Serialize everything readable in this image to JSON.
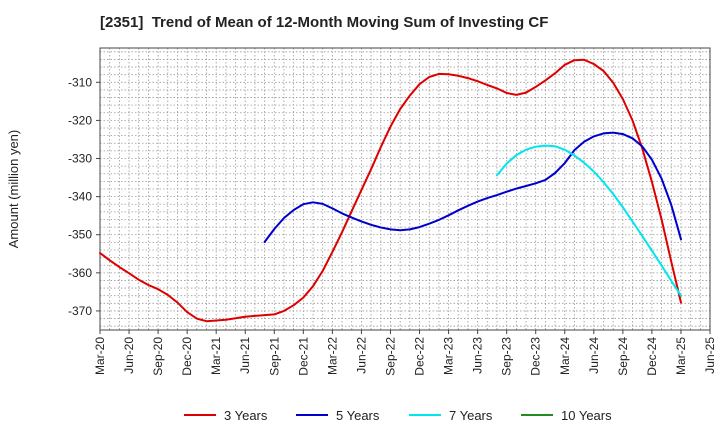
{
  "chart_data": {
    "type": "line",
    "title": "[2351]  Trend of Mean of 12-Month Moving Sum of Investing CF",
    "ylabel": "Amount (million yen)",
    "xlabel": "",
    "ylim": [
      -375,
      -301
    ],
    "yticks": [
      -310,
      -320,
      -330,
      -340,
      -350,
      -360,
      -370
    ],
    "xlim": [
      "2020-03",
      "2025-06"
    ],
    "xticks": [
      "Mar-20",
      "Jun-20",
      "Sep-20",
      "Dec-20",
      "Mar-21",
      "Jun-21",
      "Sep-21",
      "Dec-21",
      "Mar-22",
      "Jun-22",
      "Sep-22",
      "Dec-22",
      "Mar-23",
      "Jun-23",
      "Sep-23",
      "Dec-23",
      "Mar-24",
      "Jun-24",
      "Sep-24",
      "Dec-24",
      "Mar-25",
      "Jun-25"
    ],
    "grid": true,
    "legend_position": "bottom",
    "series": [
      {
        "name": "3 Years",
        "color": "#dd0000",
        "x": [
          "2020-03",
          "2020-04",
          "2020-05",
          "2020-06",
          "2020-07",
          "2020-08",
          "2020-09",
          "2020-10",
          "2020-11",
          "2020-12",
          "2021-01",
          "2021-02",
          "2021-03",
          "2021-04",
          "2021-05",
          "2021-06",
          "2021-07",
          "2021-08",
          "2021-09",
          "2021-10",
          "2021-11",
          "2021-12",
          "2022-01",
          "2022-02",
          "2022-03",
          "2022-04",
          "2022-05",
          "2022-06",
          "2022-07",
          "2022-08",
          "2022-09",
          "2022-10",
          "2022-11",
          "2022-12",
          "2023-01",
          "2023-02",
          "2023-03",
          "2023-04",
          "2023-05",
          "2023-06",
          "2023-07",
          "2023-08",
          "2023-09",
          "2023-10",
          "2023-11",
          "2023-12",
          "2024-01",
          "2024-02",
          "2024-03",
          "2024-04",
          "2024-05",
          "2024-06",
          "2024-07",
          "2024-08",
          "2024-09",
          "2024-10",
          "2024-11",
          "2024-12",
          "2025-01",
          "2025-02",
          "2025-03"
        ],
        "values": [
          -354.8,
          -356.7,
          -358.5,
          -360.1,
          -361.8,
          -363.2,
          -364.3,
          -365.8,
          -367.8,
          -370.3,
          -372.0,
          -372.7,
          -372.5,
          -372.3,
          -371.9,
          -371.5,
          -371.3,
          -371.1,
          -370.9,
          -370.0,
          -368.5,
          -366.5,
          -363.5,
          -359.5,
          -354.5,
          -349.3,
          -343.8,
          -338.3,
          -332.8,
          -327.0,
          -321.6,
          -317.0,
          -313.5,
          -310.5,
          -308.6,
          -307.8,
          -307.9,
          -308.3,
          -308.9,
          -309.7,
          -310.7,
          -311.6,
          -312.8,
          -313.3,
          -312.7,
          -311.2,
          -309.5,
          -307.6,
          -305.4,
          -304.2,
          -304.1,
          -305.2,
          -307.0,
          -310.1,
          -314.4,
          -320.0,
          -327.3,
          -336.1,
          -346.0,
          -357.1,
          -367.8
        ]
      },
      {
        "name": "5 Years",
        "color": "#0000cc",
        "x": [
          "2021-08",
          "2021-09",
          "2021-10",
          "2021-11",
          "2021-12",
          "2022-01",
          "2022-02",
          "2022-03",
          "2022-04",
          "2022-05",
          "2022-06",
          "2022-07",
          "2022-08",
          "2022-09",
          "2022-10",
          "2022-11",
          "2022-12",
          "2023-01",
          "2023-02",
          "2023-03",
          "2023-04",
          "2023-05",
          "2023-06",
          "2023-07",
          "2023-08",
          "2023-09",
          "2023-10",
          "2023-11",
          "2023-12",
          "2024-01",
          "2024-02",
          "2024-03",
          "2024-04",
          "2024-05",
          "2024-06",
          "2024-07",
          "2024-08",
          "2024-09",
          "2024-10",
          "2024-11",
          "2024-12",
          "2025-01",
          "2025-02",
          "2025-03"
        ],
        "values": [
          -351.9,
          -348.5,
          -345.6,
          -343.5,
          -342.0,
          -341.5,
          -341.9,
          -343.1,
          -344.4,
          -345.5,
          -346.5,
          -347.4,
          -348.1,
          -348.6,
          -348.8,
          -348.6,
          -348.0,
          -347.1,
          -346.1,
          -344.9,
          -343.6,
          -342.4,
          -341.3,
          -340.4,
          -339.6,
          -338.7,
          -337.9,
          -337.2,
          -336.5,
          -335.6,
          -333.8,
          -331.2,
          -327.8,
          -325.6,
          -324.2,
          -323.4,
          -323.2,
          -323.6,
          -324.7,
          -326.8,
          -330.3,
          -335.3,
          -342.2,
          -351.2
        ]
      },
      {
        "name": "7 Years",
        "color": "#00e5ee",
        "x": [
          "2023-08",
          "2023-09",
          "2023-10",
          "2023-11",
          "2023-12",
          "2024-01",
          "2024-02",
          "2024-03",
          "2024-04",
          "2024-05",
          "2024-06",
          "2024-07",
          "2024-08",
          "2024-09",
          "2024-10",
          "2024-11",
          "2024-12",
          "2025-01",
          "2025-02",
          "2025-03"
        ],
        "values": [
          -334.4,
          -331.3,
          -329.1,
          -327.7,
          -326.9,
          -326.6,
          -326.8,
          -327.7,
          -329.2,
          -331.1,
          -333.4,
          -336.2,
          -339.3,
          -342.8,
          -346.5,
          -350.3,
          -354.2,
          -358.1,
          -362.1,
          -366.0
        ]
      },
      {
        "name": "10 Years",
        "color": "#228b22",
        "x": [],
        "values": []
      }
    ]
  }
}
